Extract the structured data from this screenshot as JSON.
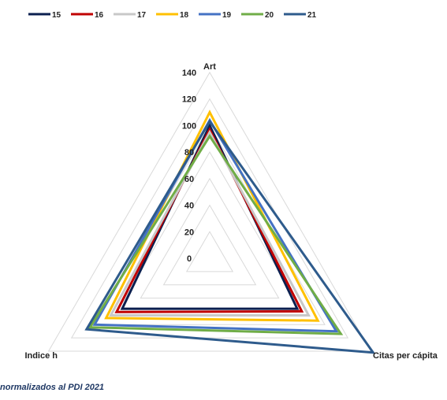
{
  "chart_data": {
    "type": "radar",
    "axes": [
      "Art",
      "Citas per cápita",
      "Indice h"
    ],
    "rmax": 140,
    "ticks": [
      0,
      20,
      40,
      60,
      80,
      100,
      120,
      140
    ],
    "legend_position": "top-left",
    "series": [
      {
        "name": "15",
        "color": "#0b1f4f",
        "values": [
          100,
          76,
          76
        ]
      },
      {
        "name": "16",
        "color": "#c00000",
        "values": [
          97,
          80,
          81
        ]
      },
      {
        "name": "17",
        "color": "#c8c8c8",
        "values": [
          95,
          86,
          86
        ]
      },
      {
        "name": "18",
        "color": "#ffc000",
        "values": [
          110,
          94,
          90
        ]
      },
      {
        "name": "19",
        "color": "#4472c4",
        "values": [
          104,
          110,
          100
        ]
      },
      {
        "name": "20",
        "color": "#70ad47",
        "values": [
          92,
          114,
          104
        ]
      },
      {
        "name": "21",
        "color": "#2e5b8c",
        "values": [
          103,
          142,
          107
        ]
      }
    ]
  },
  "footnote": "normalizados al PDI 2021"
}
